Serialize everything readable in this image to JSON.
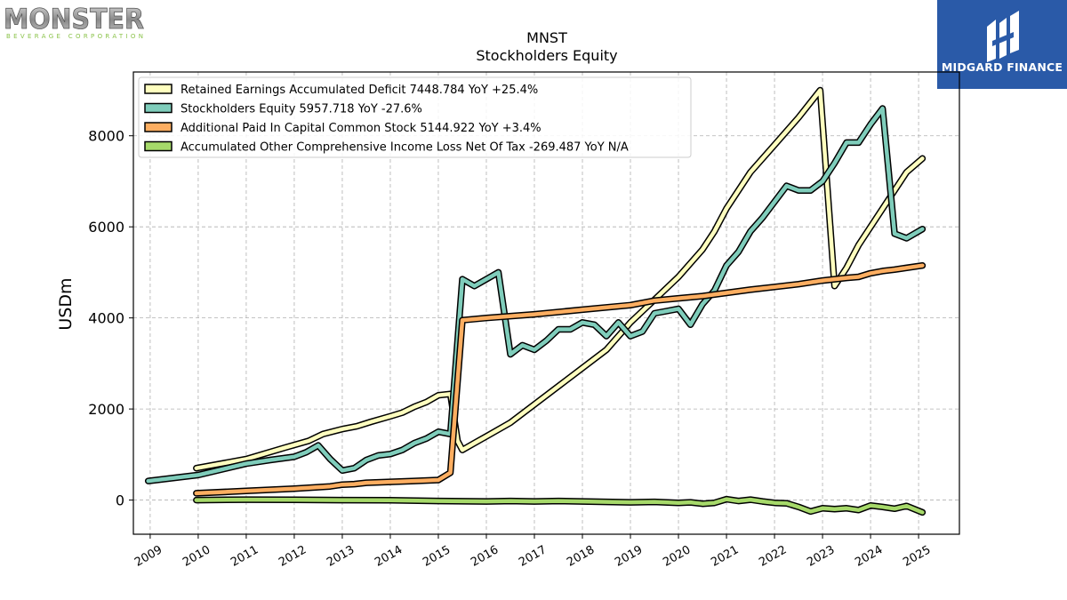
{
  "brand": {
    "name": "MONSTER",
    "sub": "BEVERAGE CORPORATION"
  },
  "partner": {
    "name": "MIDGARD FINANCE",
    "bg": "#2a5aa8"
  },
  "chart_data": {
    "type": "line",
    "title": "MNST",
    "subtitle": "Stockholders  Equity",
    "ylabel": "USDm",
    "xlabel": "",
    "xlim": [
      2008.65,
      2025.85
    ],
    "ylim": [
      -750,
      9400
    ],
    "yticks": [
      0,
      2000,
      4000,
      6000,
      8000
    ],
    "xticks": [
      2009,
      2010,
      2011,
      2012,
      2013,
      2014,
      2015,
      2016,
      2017,
      2018,
      2019,
      2020,
      2021,
      2022,
      2023,
      2024,
      2025
    ],
    "grid": true,
    "legend_position": "top-left",
    "series": [
      {
        "name": "Retained Earnings Accumulated Deficit  7448.784 YoY +25.4%",
        "color": "#ffffbf",
        "points": [
          [
            2009.96,
            700
          ],
          [
            2011.0,
            900
          ],
          [
            2011.8,
            1150
          ],
          [
            2012.3,
            1300
          ],
          [
            2012.6,
            1450
          ],
          [
            2013.0,
            1560
          ],
          [
            2013.3,
            1620
          ],
          [
            2013.6,
            1720
          ],
          [
            2014.0,
            1840
          ],
          [
            2014.25,
            1920
          ],
          [
            2014.5,
            2050
          ],
          [
            2014.75,
            2150
          ],
          [
            2015.0,
            2300
          ],
          [
            2015.25,
            2330
          ],
          [
            2015.4,
            1300
          ],
          [
            2015.5,
            1100
          ],
          [
            2015.75,
            1250
          ],
          [
            2016.0,
            1400
          ],
          [
            2016.5,
            1700
          ],
          [
            2017.0,
            2100
          ],
          [
            2017.5,
            2500
          ],
          [
            2018.0,
            2900
          ],
          [
            2018.5,
            3300
          ],
          [
            2019.0,
            3900
          ],
          [
            2019.5,
            4400
          ],
          [
            2020.0,
            4900
          ],
          [
            2020.5,
            5500
          ],
          [
            2020.75,
            5900
          ],
          [
            2021.0,
            6400
          ],
          [
            2021.25,
            6800
          ],
          [
            2021.5,
            7200
          ],
          [
            2022.0,
            7800
          ],
          [
            2022.5,
            8400
          ],
          [
            2022.95,
            9000
          ],
          [
            2023.25,
            4700
          ],
          [
            2023.5,
            5100
          ],
          [
            2023.75,
            5600
          ],
          [
            2024.0,
            6000
          ],
          [
            2024.5,
            6800
          ],
          [
            2024.75,
            7200
          ],
          [
            2025.08,
            7500
          ]
        ]
      },
      {
        "name": "Stockholders Equity  5957.718 YoY -27.6%",
        "color": "#7fcdbb",
        "points": [
          [
            2008.96,
            420
          ],
          [
            2010.0,
            550
          ],
          [
            2011.0,
            800
          ],
          [
            2011.5,
            880
          ],
          [
            2012.0,
            950
          ],
          [
            2012.25,
            1050
          ],
          [
            2012.5,
            1200
          ],
          [
            2012.75,
            900
          ],
          [
            2013.0,
            650
          ],
          [
            2013.25,
            700
          ],
          [
            2013.5,
            880
          ],
          [
            2013.75,
            980
          ],
          [
            2014.0,
            1010
          ],
          [
            2014.25,
            1100
          ],
          [
            2014.5,
            1250
          ],
          [
            2014.75,
            1350
          ],
          [
            2015.0,
            1500
          ],
          [
            2015.25,
            1450
          ],
          [
            2015.5,
            4850
          ],
          [
            2015.75,
            4700
          ],
          [
            2016.0,
            4850
          ],
          [
            2016.25,
            5000
          ],
          [
            2016.5,
            3200
          ],
          [
            2016.75,
            3400
          ],
          [
            2017.0,
            3300
          ],
          [
            2017.25,
            3500
          ],
          [
            2017.5,
            3750
          ],
          [
            2017.75,
            3750
          ],
          [
            2018.0,
            3900
          ],
          [
            2018.25,
            3850
          ],
          [
            2018.5,
            3600
          ],
          [
            2018.75,
            3900
          ],
          [
            2019.0,
            3600
          ],
          [
            2019.25,
            3700
          ],
          [
            2019.5,
            4100
          ],
          [
            2019.75,
            4150
          ],
          [
            2020.0,
            4200
          ],
          [
            2020.25,
            3850
          ],
          [
            2020.5,
            4300
          ],
          [
            2020.75,
            4600
          ],
          [
            2021.0,
            5150
          ],
          [
            2021.25,
            5450
          ],
          [
            2021.5,
            5900
          ],
          [
            2021.75,
            6200
          ],
          [
            2022.0,
            6550
          ],
          [
            2022.25,
            6900
          ],
          [
            2022.5,
            6800
          ],
          [
            2022.75,
            6800
          ],
          [
            2023.0,
            7000
          ],
          [
            2023.25,
            7400
          ],
          [
            2023.5,
            7850
          ],
          [
            2023.75,
            7850
          ],
          [
            2024.0,
            8250
          ],
          [
            2024.25,
            8600
          ],
          [
            2024.5,
            5850
          ],
          [
            2024.75,
            5750
          ],
          [
            2025.08,
            5950
          ]
        ]
      },
      {
        "name": "Additional Paid In Capital Common Stock  5144.922 YoY +3.4%",
        "color": "#fdae61",
        "points": [
          [
            2009.96,
            150
          ],
          [
            2011.0,
            200
          ],
          [
            2012.0,
            250
          ],
          [
            2012.75,
            300
          ],
          [
            2013.0,
            340
          ],
          [
            2013.25,
            350
          ],
          [
            2013.5,
            380
          ],
          [
            2014.0,
            400
          ],
          [
            2014.5,
            420
          ],
          [
            2015.0,
            440
          ],
          [
            2015.25,
            600
          ],
          [
            2015.5,
            3950
          ],
          [
            2016.0,
            4000
          ],
          [
            2017.0,
            4080
          ],
          [
            2018.0,
            4180
          ],
          [
            2019.0,
            4280
          ],
          [
            2019.5,
            4380
          ],
          [
            2020.0,
            4430
          ],
          [
            2020.5,
            4480
          ],
          [
            2021.0,
            4550
          ],
          [
            2021.5,
            4620
          ],
          [
            2022.0,
            4680
          ],
          [
            2022.5,
            4740
          ],
          [
            2023.0,
            4820
          ],
          [
            2023.5,
            4880
          ],
          [
            2023.75,
            4900
          ],
          [
            2024.0,
            4980
          ],
          [
            2024.25,
            5030
          ],
          [
            2024.5,
            5060
          ],
          [
            2025.08,
            5150
          ]
        ]
      },
      {
        "name": "Accumulated Other Comprehensive Income Loss Net Of Tax  -269.487 YoY N/A",
        "color": "#a6d96a",
        "points": [
          [
            2009.96,
            0
          ],
          [
            2011.0,
            10
          ],
          [
            2012.0,
            5
          ],
          [
            2013.0,
            0
          ],
          [
            2014.0,
            -5
          ],
          [
            2015.0,
            -20
          ],
          [
            2016.0,
            -30
          ],
          [
            2016.5,
            -20
          ],
          [
            2017.0,
            -30
          ],
          [
            2017.5,
            -20
          ],
          [
            2018.0,
            -30
          ],
          [
            2018.5,
            -40
          ],
          [
            2019.0,
            -50
          ],
          [
            2019.5,
            -40
          ],
          [
            2020.0,
            -60
          ],
          [
            2020.25,
            -50
          ],
          [
            2020.5,
            -80
          ],
          [
            2020.75,
            -60
          ],
          [
            2021.0,
            20
          ],
          [
            2021.25,
            -20
          ],
          [
            2021.5,
            10
          ],
          [
            2021.75,
            -30
          ],
          [
            2022.0,
            -60
          ],
          [
            2022.25,
            -70
          ],
          [
            2022.5,
            -150
          ],
          [
            2022.75,
            -250
          ],
          [
            2023.0,
            -180
          ],
          [
            2023.25,
            -200
          ],
          [
            2023.5,
            -180
          ],
          [
            2023.75,
            -220
          ],
          [
            2024.0,
            -120
          ],
          [
            2024.25,
            -150
          ],
          [
            2024.5,
            -190
          ],
          [
            2024.75,
            -130
          ],
          [
            2025.08,
            -269
          ]
        ]
      }
    ]
  }
}
